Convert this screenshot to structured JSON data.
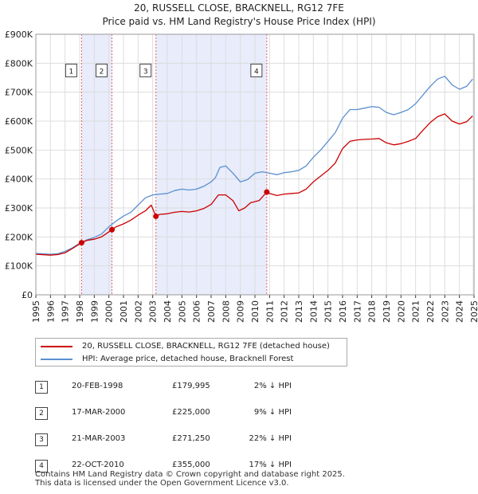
{
  "title": {
    "line1": "20, RUSSELL CLOSE, BRACKNELL, RG12 7FE",
    "line2": "Price paid vs. HM Land Registry's House Price Index (HPI)"
  },
  "colors": {
    "property": "#cc0000",
    "hpi": "#5b8fd0",
    "shade": "#e8ecfb",
    "vline": "#e06666"
  },
  "chart_data": {
    "type": "line",
    "x_range": [
      1995,
      2025
    ],
    "ylim": [
      0,
      900000
    ],
    "y_ticks": [
      {
        "value": 0,
        "label": "£0"
      },
      {
        "value": 100000,
        "label": "£100K"
      },
      {
        "value": 200000,
        "label": "£200K"
      },
      {
        "value": 300000,
        "label": "£300K"
      },
      {
        "value": 400000,
        "label": "£400K"
      },
      {
        "value": 500000,
        "label": "£500K"
      },
      {
        "value": 600000,
        "label": "£600K"
      },
      {
        "value": 700000,
        "label": "£700K"
      },
      {
        "value": 800000,
        "label": "£800K"
      },
      {
        "value": 900000,
        "label": "£900K"
      }
    ],
    "x_ticks": [
      "1995",
      "1996",
      "1997",
      "1998",
      "1999",
      "2000",
      "2001",
      "2002",
      "2003",
      "2004",
      "2005",
      "2006",
      "2007",
      "2008",
      "2009",
      "2010",
      "2011",
      "2012",
      "2013",
      "2014",
      "2015",
      "2016",
      "2017",
      "2018",
      "2019",
      "2020",
      "2021",
      "2022",
      "2023",
      "2024",
      "2025"
    ],
    "series": [
      {
        "name": "HPI: Average price, detached house, Bracknell Forest",
        "points": [
          [
            1995.0,
            143000
          ],
          [
            1996.0,
            140000
          ],
          [
            1996.5,
            142000
          ],
          [
            1997.0,
            150000
          ],
          [
            1997.5,
            162000
          ],
          [
            1998.0,
            178000
          ],
          [
            1998.5,
            190000
          ],
          [
            1999.0,
            198000
          ],
          [
            1999.5,
            210000
          ],
          [
            2000.0,
            235000
          ],
          [
            2000.5,
            255000
          ],
          [
            2001.0,
            272000
          ],
          [
            2001.5,
            285000
          ],
          [
            2002.0,
            310000
          ],
          [
            2002.5,
            335000
          ],
          [
            2003.0,
            345000
          ],
          [
            2003.5,
            348000
          ],
          [
            2004.0,
            350000
          ],
          [
            2004.5,
            360000
          ],
          [
            2005.0,
            365000
          ],
          [
            2005.5,
            362000
          ],
          [
            2006.0,
            365000
          ],
          [
            2006.5,
            375000
          ],
          [
            2007.0,
            390000
          ],
          [
            2007.3,
            405000
          ],
          [
            2007.6,
            440000
          ],
          [
            2008.0,
            445000
          ],
          [
            2008.5,
            420000
          ],
          [
            2009.0,
            390000
          ],
          [
            2009.5,
            398000
          ],
          [
            2010.0,
            420000
          ],
          [
            2010.5,
            425000
          ],
          [
            2011.0,
            420000
          ],
          [
            2011.5,
            415000
          ],
          [
            2012.0,
            422000
          ],
          [
            2012.5,
            425000
          ],
          [
            2013.0,
            430000
          ],
          [
            2013.5,
            445000
          ],
          [
            2014.0,
            475000
          ],
          [
            2014.5,
            500000
          ],
          [
            2015.0,
            530000
          ],
          [
            2015.5,
            560000
          ],
          [
            2016.0,
            610000
          ],
          [
            2016.5,
            640000
          ],
          [
            2017.0,
            640000
          ],
          [
            2017.5,
            645000
          ],
          [
            2018.0,
            650000
          ],
          [
            2018.5,
            648000
          ],
          [
            2019.0,
            630000
          ],
          [
            2019.5,
            622000
          ],
          [
            2020.0,
            630000
          ],
          [
            2020.5,
            640000
          ],
          [
            2021.0,
            660000
          ],
          [
            2021.5,
            690000
          ],
          [
            2022.0,
            720000
          ],
          [
            2022.5,
            745000
          ],
          [
            2023.0,
            755000
          ],
          [
            2023.5,
            725000
          ],
          [
            2024.0,
            710000
          ],
          [
            2024.5,
            720000
          ],
          [
            2024.9,
            745000
          ]
        ]
      },
      {
        "name": "20, RUSSELL CLOSE, BRACKNELL, RG12 7FE (detached house)",
        "points": [
          [
            1995.0,
            140000
          ],
          [
            1996.0,
            137000
          ],
          [
            1996.5,
            139000
          ],
          [
            1997.0,
            145000
          ],
          [
            1997.5,
            160000
          ],
          [
            1998.13,
            179995
          ],
          [
            1998.5,
            188000
          ],
          [
            1999.0,
            192000
          ],
          [
            1999.5,
            200000
          ],
          [
            2000.21,
            225000
          ],
          [
            2000.5,
            235000
          ],
          [
            2001.0,
            245000
          ],
          [
            2001.5,
            258000
          ],
          [
            2002.0,
            275000
          ],
          [
            2002.5,
            290000
          ],
          [
            2002.9,
            310000
          ],
          [
            2003.22,
            271250
          ],
          [
            2003.5,
            278000
          ],
          [
            2004.0,
            280000
          ],
          [
            2004.5,
            285000
          ],
          [
            2005.0,
            288000
          ],
          [
            2005.5,
            286000
          ],
          [
            2006.0,
            290000
          ],
          [
            2006.5,
            298000
          ],
          [
            2007.0,
            312000
          ],
          [
            2007.5,
            345000
          ],
          [
            2008.0,
            345000
          ],
          [
            2008.5,
            325000
          ],
          [
            2008.9,
            290000
          ],
          [
            2009.3,
            300000
          ],
          [
            2009.7,
            318000
          ],
          [
            2010.3,
            326000
          ],
          [
            2010.81,
            355000
          ],
          [
            2011.0,
            350000
          ],
          [
            2011.5,
            343000
          ],
          [
            2012.0,
            348000
          ],
          [
            2012.5,
            350000
          ],
          [
            2013.0,
            352000
          ],
          [
            2013.5,
            365000
          ],
          [
            2014.0,
            390000
          ],
          [
            2014.5,
            410000
          ],
          [
            2015.0,
            430000
          ],
          [
            2015.5,
            455000
          ],
          [
            2016.0,
            505000
          ],
          [
            2016.5,
            530000
          ],
          [
            2017.0,
            535000
          ],
          [
            2017.5,
            537000
          ],
          [
            2018.0,
            538000
          ],
          [
            2018.5,
            540000
          ],
          [
            2019.0,
            525000
          ],
          [
            2019.5,
            518000
          ],
          [
            2020.0,
            522000
          ],
          [
            2020.5,
            530000
          ],
          [
            2021.0,
            540000
          ],
          [
            2021.5,
            568000
          ],
          [
            2022.0,
            595000
          ],
          [
            2022.5,
            615000
          ],
          [
            2023.0,
            625000
          ],
          [
            2023.5,
            600000
          ],
          [
            2024.0,
            590000
          ],
          [
            2024.5,
            598000
          ],
          [
            2024.9,
            618000
          ]
        ]
      }
    ],
    "sales": [
      {
        "label": "1",
        "x": 1998.13,
        "y": 179995
      },
      {
        "label": "2",
        "x": 2000.21,
        "y": 225000
      },
      {
        "label": "3",
        "x": 2003.22,
        "y": 271250
      },
      {
        "label": "4",
        "x": 2010.81,
        "y": 355000
      }
    ],
    "shaded_ranges": [
      [
        1998.13,
        2000.21
      ],
      [
        2003.22,
        2010.81
      ]
    ],
    "label_y_value": 775000
  },
  "legend": {
    "property": "20, RUSSELL CLOSE, BRACKNELL, RG12 7FE (detached house)",
    "hpi": "HPI: Average price, detached house, Bracknell Forest"
  },
  "transactions": [
    {
      "num": "1",
      "date": "20-FEB-1998",
      "price": "£179,995",
      "hpi": "2% ↓ HPI"
    },
    {
      "num": "2",
      "date": "17-MAR-2000",
      "price": "£225,000",
      "hpi": "9% ↓ HPI"
    },
    {
      "num": "3",
      "date": "21-MAR-2003",
      "price": "£271,250",
      "hpi": "22% ↓ HPI"
    },
    {
      "num": "4",
      "date": "22-OCT-2010",
      "price": "£355,000",
      "hpi": "17% ↓ HPI"
    }
  ],
  "footer": {
    "line1": "Contains HM Land Registry data © Crown copyright and database right 2025.",
    "line2": "This data is licensed under the Open Government Licence v3.0."
  }
}
